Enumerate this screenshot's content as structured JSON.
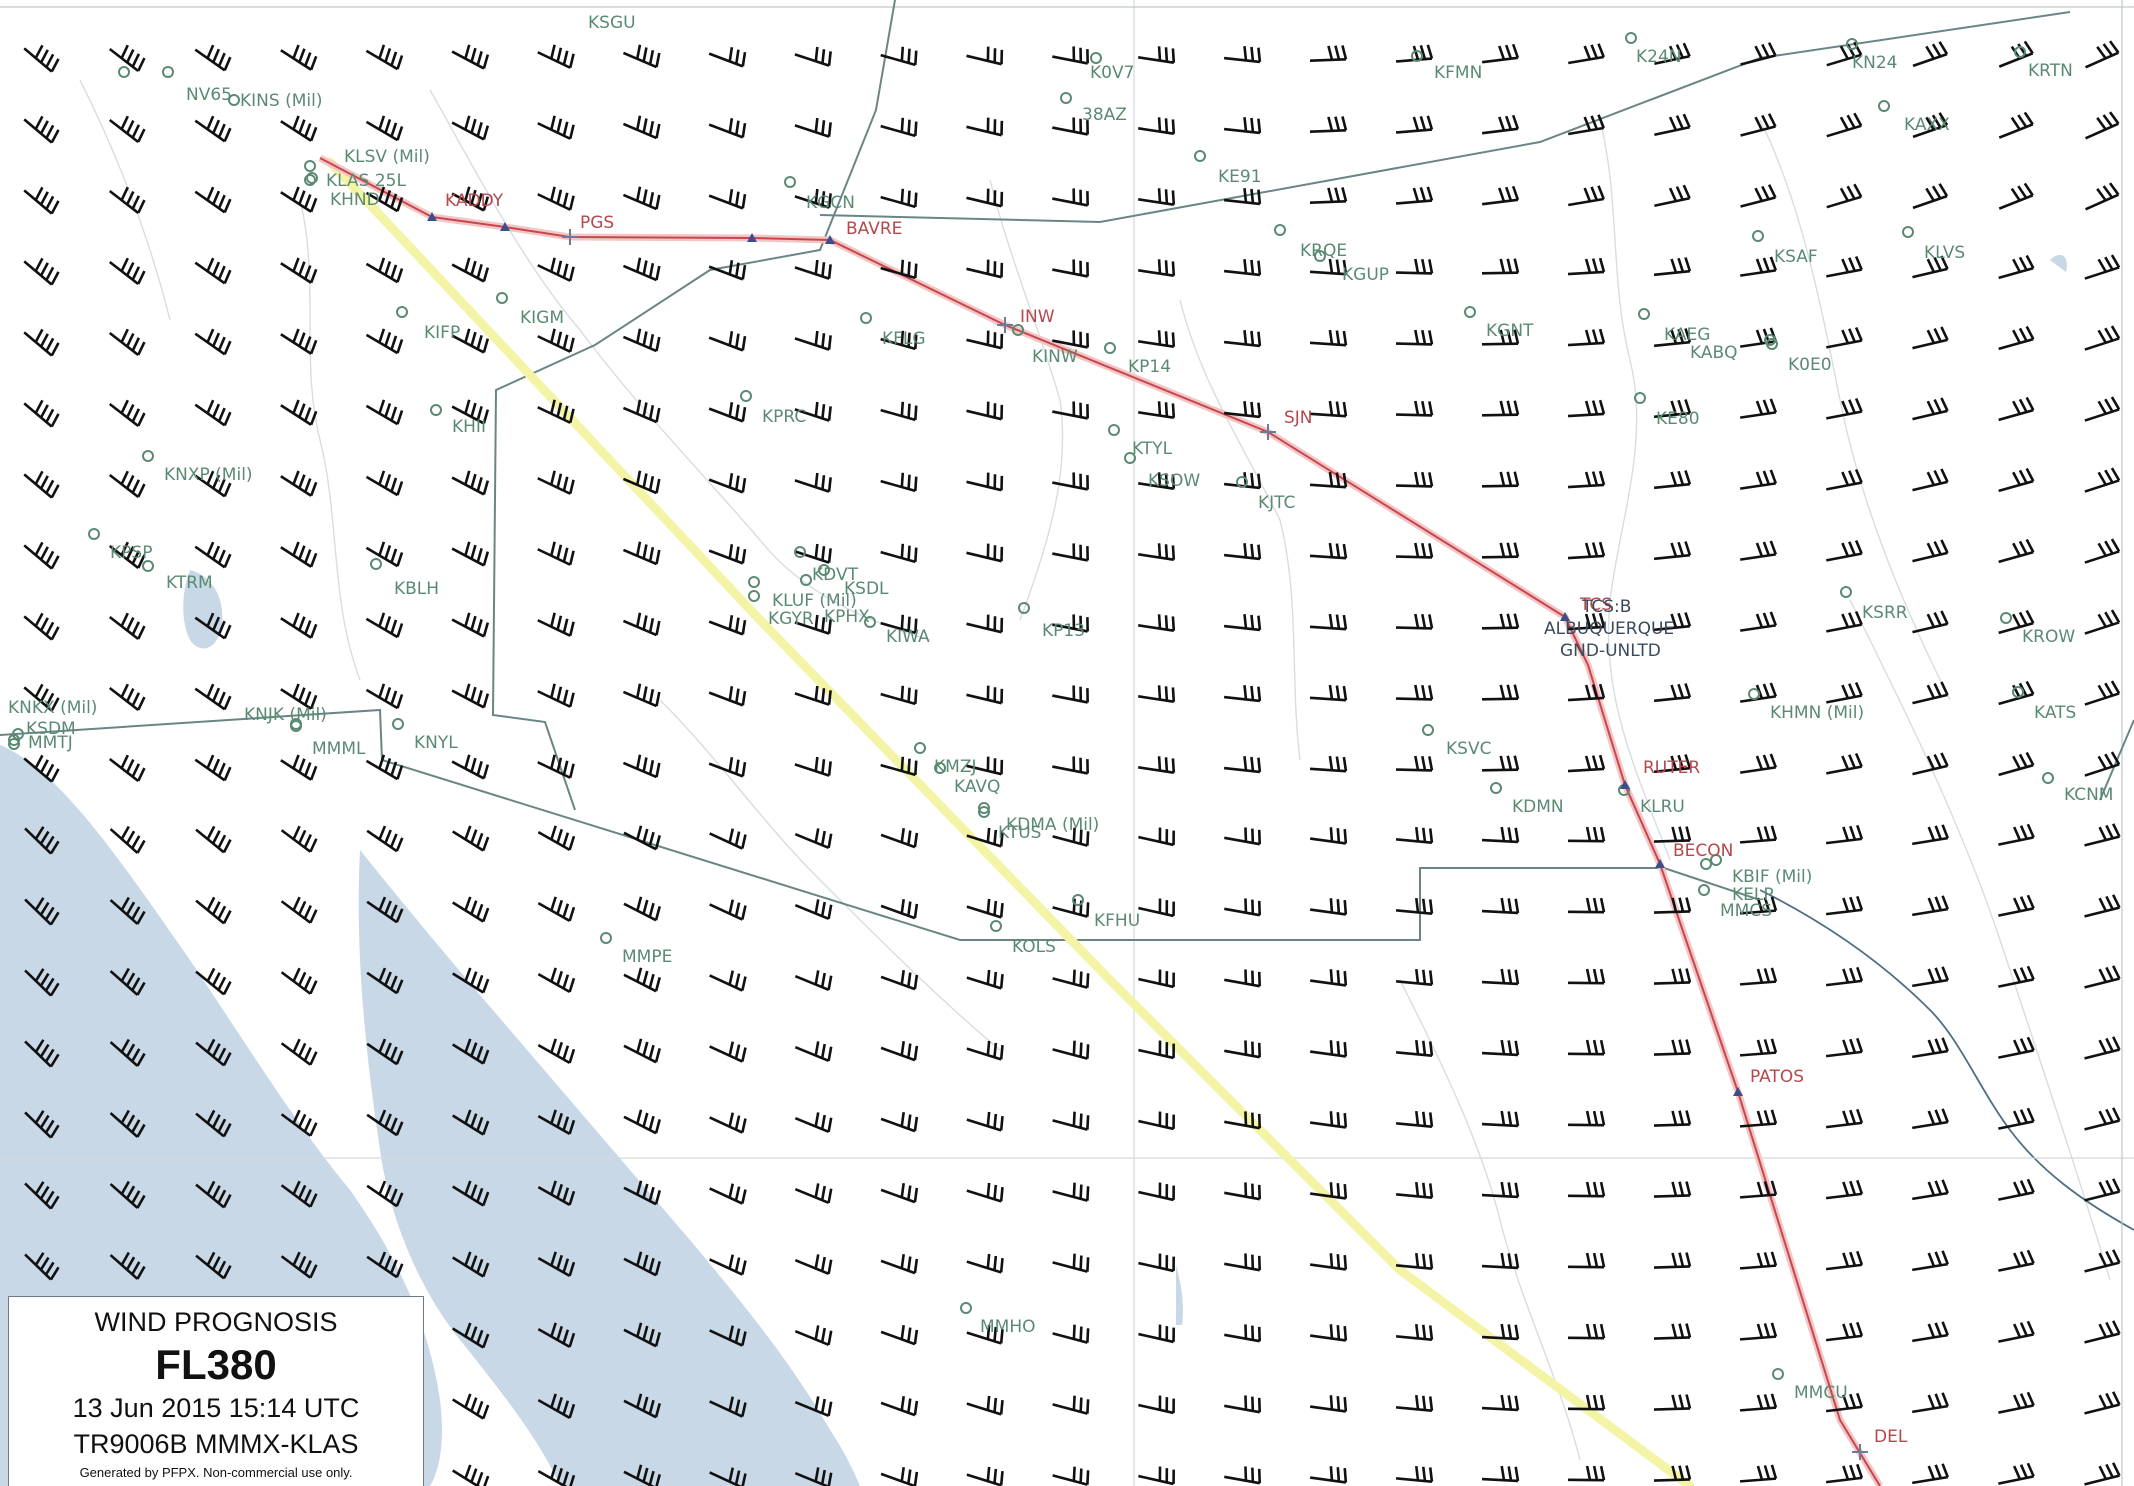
{
  "legend": {
    "title": "WIND PROGNOSIS",
    "flight_level": "FL380",
    "datetime": "13 Jun 2015 15:14 UTC",
    "flight": "TR9006B MMMX-KLAS",
    "credit": "Generated by PFPX. Non-commercial use only."
  },
  "colors": {
    "route": "#c8464c",
    "route_glow": "#f2c6c6",
    "alternate_track": "#f4f4a6",
    "water": "#c8d8e6",
    "boundary": "#6a8684",
    "river": "#d7dde2",
    "airport": "#5b8a72",
    "waypoint_label": "#b5484d",
    "wind_barb": "#111111"
  },
  "icons": {
    "airport": "airport-circle-icon",
    "waypoint": "waypoint-triangle-icon",
    "navaid": "navaid-star-icon",
    "wind": "wind-barb-icon"
  },
  "airports": [
    "KSGU",
    "K0V7",
    "38AZ",
    "KFMN",
    "K24N",
    "KN24",
    "KRTN",
    "NV65",
    "KINS (Mil)",
    "KAXX",
    "KLSV (Mil)",
    "KLAS 25L",
    "KHND",
    "KGCN",
    "KE91",
    "KRQE",
    "KGUP",
    "KSAF",
    "KLVS",
    "KIFP",
    "KIGM",
    "KFLG",
    "KINW",
    "KP14",
    "KGNT",
    "KAEG",
    "KABQ",
    "K0E0",
    "KHII",
    "KPRC",
    "KTYL",
    "KSOW",
    "KJTC",
    "KE80",
    "KNXP (Mil)",
    "KPSP",
    "KTRM",
    "KBLH",
    "KDVT",
    "KSDL",
    "KLUF (Mil)",
    "KGYR",
    "KPHX",
    "KIWA",
    "KP13",
    "KSRR",
    "KROW",
    "KNKX (Mil)",
    "KNJK (Mil)",
    "KNYL",
    "MMML",
    "KSDM",
    "MMTJ",
    "KSVC",
    "KHMN (Mil)",
    "KATS",
    "KMZJ",
    "KAVQ",
    "KDMA (Mil)",
    "KTUS",
    "KDMN",
    "KLRU",
    "KCNM",
    "KBIF (Mil)",
    "KELP",
    "MMCS",
    "KFHU",
    "KOLS",
    "MMPE",
    "MMHO",
    "MMCU"
  ],
  "waypoints": [
    "KADDY",
    "PGS",
    "BAVRE",
    "INW",
    "SJN",
    "TCS",
    "RUTER",
    "BECON",
    "PATOS",
    "DEL"
  ],
  "wx_station": {
    "code": "TCS:B",
    "city": "ALBUQUERQUE",
    "ceiling": "GND-UNLTD"
  }
}
